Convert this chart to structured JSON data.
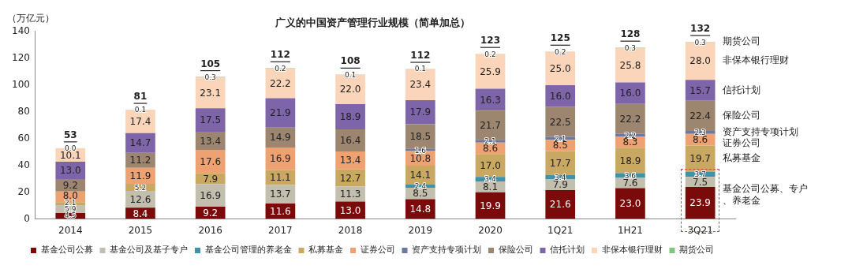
{
  "chart_data": {
    "type": "bar",
    "title": "广义的中国资产管理行业规模（简单加总）",
    "ylabel": "（万亿元）",
    "categories": [
      "2014",
      "2015",
      "2016",
      "2017",
      "2018",
      "2019",
      "2020",
      "1Q21",
      "1H21",
      "3Q21"
    ],
    "stacked": true,
    "legend": "bottom",
    "grid": false,
    "ylim": [
      0,
      140
    ],
    "yticks": [
      0,
      20,
      40,
      60,
      80,
      100,
      120,
      140
    ],
    "totals": [
      "53",
      "81",
      "105",
      "112",
      "108",
      "112",
      "123",
      "125",
      "128",
      "132"
    ],
    "series": [
      {
        "name": "基金公司公募",
        "color": "#7b0a0a",
        "values": [
          4.5,
          8.4,
          9.2,
          11.6,
          13.0,
          14.8,
          19.9,
          21.6,
          23.0,
          23.9
        ],
        "value_labels": [
          "4.5",
          "8.4",
          "9.2",
          "11.6",
          "13.0",
          "14.8",
          "19.9",
          "21.6",
          "23.0",
          "23.9"
        ]
      },
      {
        "name": "基金公司及基子专户",
        "color": "#c3bfae",
        "values": [
          5.9,
          12.6,
          16.9,
          13.7,
          11.3,
          8.5,
          8.1,
          7.9,
          7.6,
          7.5
        ],
        "value_labels": [
          "5.9",
          "12.6",
          "16.9",
          "13.7",
          "11.3",
          "8.5",
          "8.1",
          "7.9",
          "7.6",
          "7.5"
        ]
      },
      {
        "name": "基金公司管理的养老金",
        "color": "#3f93a8",
        "values": [
          null,
          null,
          null,
          null,
          null,
          2.4,
          3.4,
          3.4,
          3.6,
          3.7
        ],
        "value_labels": [
          null,
          null,
          null,
          null,
          null,
          "2.4",
          "3.4",
          "3.4",
          "3.6",
          "3.7"
        ]
      },
      {
        "name": "私募基金",
        "color": "#c9a862",
        "values": [
          2.1,
          5.2,
          7.9,
          11.1,
          12.7,
          14.1,
          17.0,
          17.7,
          18.9,
          19.7
        ],
        "value_labels": [
          "2.1",
          "5.2",
          "7.9",
          "11.1",
          "12.7",
          "14.1",
          "17.0",
          "17.7",
          "18.9",
          "19.7"
        ]
      },
      {
        "name": "证券公司",
        "color": "#eea272",
        "values": [
          8.0,
          11.9,
          17.6,
          16.9,
          13.4,
          10.8,
          8.6,
          8.5,
          8.3,
          8.6
        ],
        "value_labels": [
          "8.0",
          "11.9",
          "17.6",
          "16.9",
          "13.4",
          "10.8",
          "8.6",
          "8.5",
          "8.3",
          "8.6"
        ]
      },
      {
        "name": "资产支持专项计划",
        "color": "#6b78a0",
        "values": [
          null,
          null,
          null,
          null,
          null,
          1.6,
          2.1,
          2.1,
          2.2,
          2.3
        ],
        "value_labels": [
          null,
          null,
          null,
          null,
          null,
          "1.6",
          "2.1",
          "2.1",
          "2.2",
          "2.3"
        ]
      },
      {
        "name": "保险公司",
        "color": "#9c8670",
        "values": [
          9.2,
          11.2,
          13.4,
          14.9,
          16.4,
          18.5,
          21.7,
          22.5,
          22.2,
          22.4
        ],
        "value_labels": [
          "9.2",
          "11.2",
          "13.4",
          "14.9",
          "16.4",
          "18.5",
          "21.7",
          "22.5",
          "22.2",
          "22.4"
        ]
      },
      {
        "name": "信托计划",
        "color": "#7e64a8",
        "values": [
          13.0,
          14.7,
          17.5,
          21.9,
          18.9,
          17.9,
          16.3,
          16.0,
          16.0,
          15.7
        ],
        "value_labels": [
          "13.0",
          "14.7",
          "17.5",
          "21.9",
          "18.9",
          "17.9",
          "16.3",
          "16.0",
          "16.0",
          "15.7"
        ]
      },
      {
        "name": "非保本银行理财",
        "color": "#fbd5b9",
        "values": [
          10.1,
          17.4,
          23.1,
          22.2,
          22.0,
          23.4,
          25.9,
          25.0,
          25.8,
          28.0
        ],
        "value_labels": [
          "10.1",
          "17.4",
          "23.1",
          "22.2",
          "22.0",
          "23.4",
          "25.9",
          "25.0",
          "25.8",
          "28.0"
        ]
      },
      {
        "name": "期货公司",
        "color": "#7fc47f",
        "values": [
          0.0,
          0.1,
          0.3,
          0.2,
          0.1,
          0.1,
          0.2,
          0.2,
          0.3,
          0.3
        ],
        "value_labels": [
          "0.0",
          "0.1",
          "0.3",
          "0.2",
          "0.1",
          "0.1",
          "0.2",
          "0.2",
          "0.3",
          "0.3"
        ]
      }
    ],
    "annotations": [
      "期货公司",
      "非保本银行理财",
      "信托计划",
      "保险公司",
      "资产支持专项计划",
      "证券公司",
      "私募基金",
      "基金公司公募、专户、养老金"
    ]
  }
}
